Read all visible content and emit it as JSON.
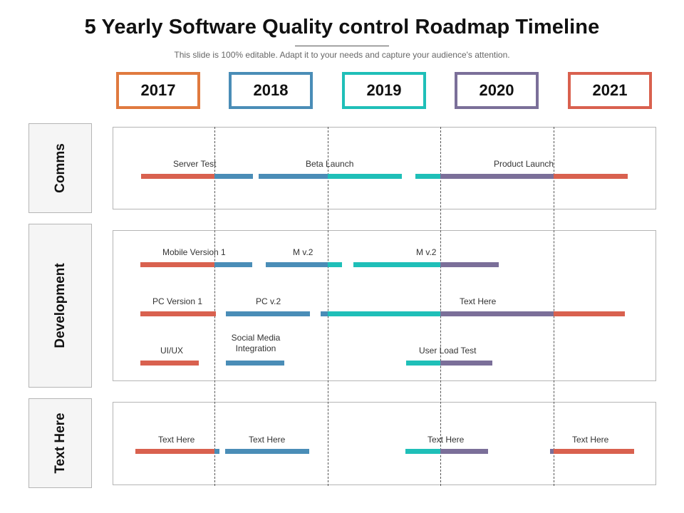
{
  "header": {
    "title": "5 Yearly Software Quality control Roadmap Timeline",
    "subtitle": "This slide is 100% editable. Adapt it to your needs and capture your audience's attention."
  },
  "years": [
    {
      "label": "2017",
      "color": "#E07A3F"
    },
    {
      "label": "2018",
      "color": "#4A8DB7"
    },
    {
      "label": "2019",
      "color": "#1FBFB8"
    },
    {
      "label": "2020",
      "color": "#7B6F99"
    },
    {
      "label": "2021",
      "color": "#D9614F"
    }
  ],
  "rows": [
    {
      "label": "Comms"
    },
    {
      "label": "Development"
    },
    {
      "label": "Text Here"
    }
  ],
  "palette": {
    "red": "#D9614F",
    "blue": "#4A8DB7",
    "teal": "#1FBFB8",
    "purple": "#7B6F99"
  },
  "labels": {
    "server_test": "Server  Test",
    "beta_launch": "Beta Launch",
    "product_launch": "Product Launch",
    "mobile_v1": "Mobile Version 1",
    "m_v2_a": "M v.2",
    "m_v2_b": "M v.2",
    "pc_v1": "PC Version 1",
    "pc_v2": "PC v.2",
    "text_here_dev": "Text Here",
    "uiux": "UI/UX",
    "social_media": "Social Media Integration",
    "user_load_test": "User Load Test",
    "text_here_1": "Text Here",
    "text_here_2": "Text Here",
    "text_here_3": "Text Here",
    "text_here_4": "Text Here"
  }
}
